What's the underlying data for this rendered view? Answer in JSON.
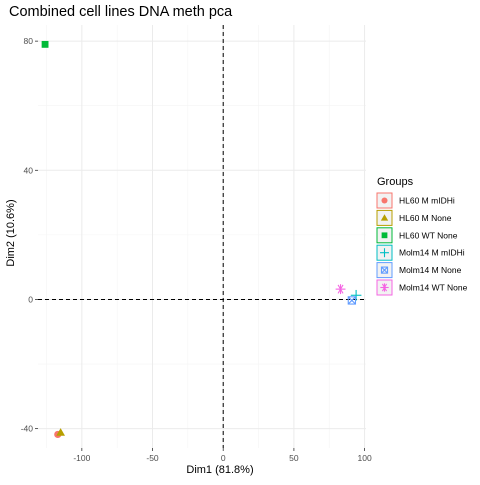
{
  "chart_data": {
    "type": "scatter",
    "title": "Combined cell lines DNA meth pca",
    "xlabel": "Dim1 (81.8%)",
    "ylabel": "Dim2 (10.6%)",
    "xlim": [
      -131,
      101
    ],
    "ylim": [
      -46,
      85
    ],
    "x_ticks": [
      -100,
      -50,
      0,
      50,
      100
    ],
    "y_ticks": [
      -40,
      0,
      40,
      80
    ],
    "grid": true,
    "reference_lines": {
      "x": 0,
      "y": 0,
      "style": "dashed"
    },
    "legend": {
      "title": "Groups",
      "position": "right"
    },
    "series": [
      {
        "name": "HL60 M mIDHi",
        "color": "#F8766D",
        "marker": "circle",
        "points": [
          [
            -117,
            -41.8
          ]
        ]
      },
      {
        "name": "HL60 M None",
        "color": "#B79F00",
        "marker": "triangle",
        "points": [
          [
            -115,
            -41.2
          ]
        ]
      },
      {
        "name": "HL60 WT None",
        "color": "#00BA38",
        "marker": "square",
        "points": [
          [
            -126,
            79
          ]
        ]
      },
      {
        "name": "Molm14 M mIDHi",
        "color": "#00BFC4",
        "marker": "plus",
        "points": [
          [
            94,
            1.3
          ]
        ]
      },
      {
        "name": "Molm14 M None",
        "color": "#619CFF",
        "marker": "square-cross",
        "points": [
          [
            91,
            -0.3
          ]
        ]
      },
      {
        "name": "Molm14 WT None",
        "color": "#F564E3",
        "marker": "asterisk",
        "points": [
          [
            83,
            3.2
          ]
        ]
      }
    ]
  }
}
